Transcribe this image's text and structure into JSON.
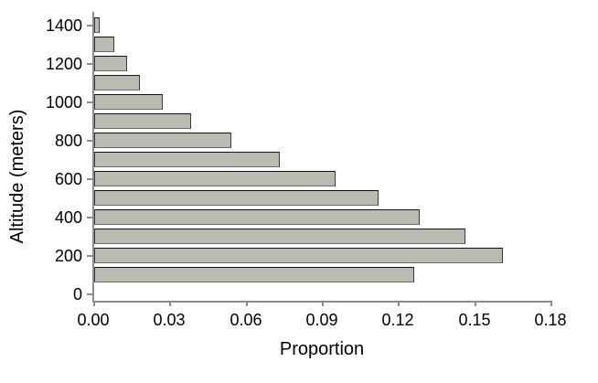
{
  "chart_data": {
    "type": "bar",
    "orientation": "horizontal",
    "title": "",
    "xlabel": "Proportion",
    "ylabel": "Altitude (meters)",
    "categories_altitude_m": [
      100,
      200,
      300,
      400,
      500,
      600,
      700,
      800,
      900,
      1000,
      1100,
      1200,
      1300,
      1400
    ],
    "values_proportion": [
      0.126,
      0.161,
      0.146,
      0.128,
      0.112,
      0.095,
      0.073,
      0.054,
      0.038,
      0.027,
      0.018,
      0.013,
      0.008,
      0.002
    ],
    "xlim": [
      0,
      0.18
    ],
    "xticks": [
      0,
      0.03,
      0.06,
      0.09,
      0.12,
      0.15,
      0.18
    ],
    "xtick_labels": [
      "0.00",
      "0.03",
      "0.06",
      "0.09",
      "0.12",
      "0.15",
      "0.18"
    ],
    "yticks": [
      0,
      200,
      400,
      600,
      800,
      1000,
      1200,
      1400
    ],
    "ytick_labels": [
      "0",
      "200",
      "400",
      "600",
      "800",
      "1000",
      "1200",
      "1400"
    ],
    "grid": false,
    "legend": null,
    "colors": {
      "bar_fill": "#b9bcb0",
      "bar_border": "#3a3a3a",
      "axis": "#8c8c8c",
      "text": "#000000",
      "background": "#ffffff"
    }
  }
}
